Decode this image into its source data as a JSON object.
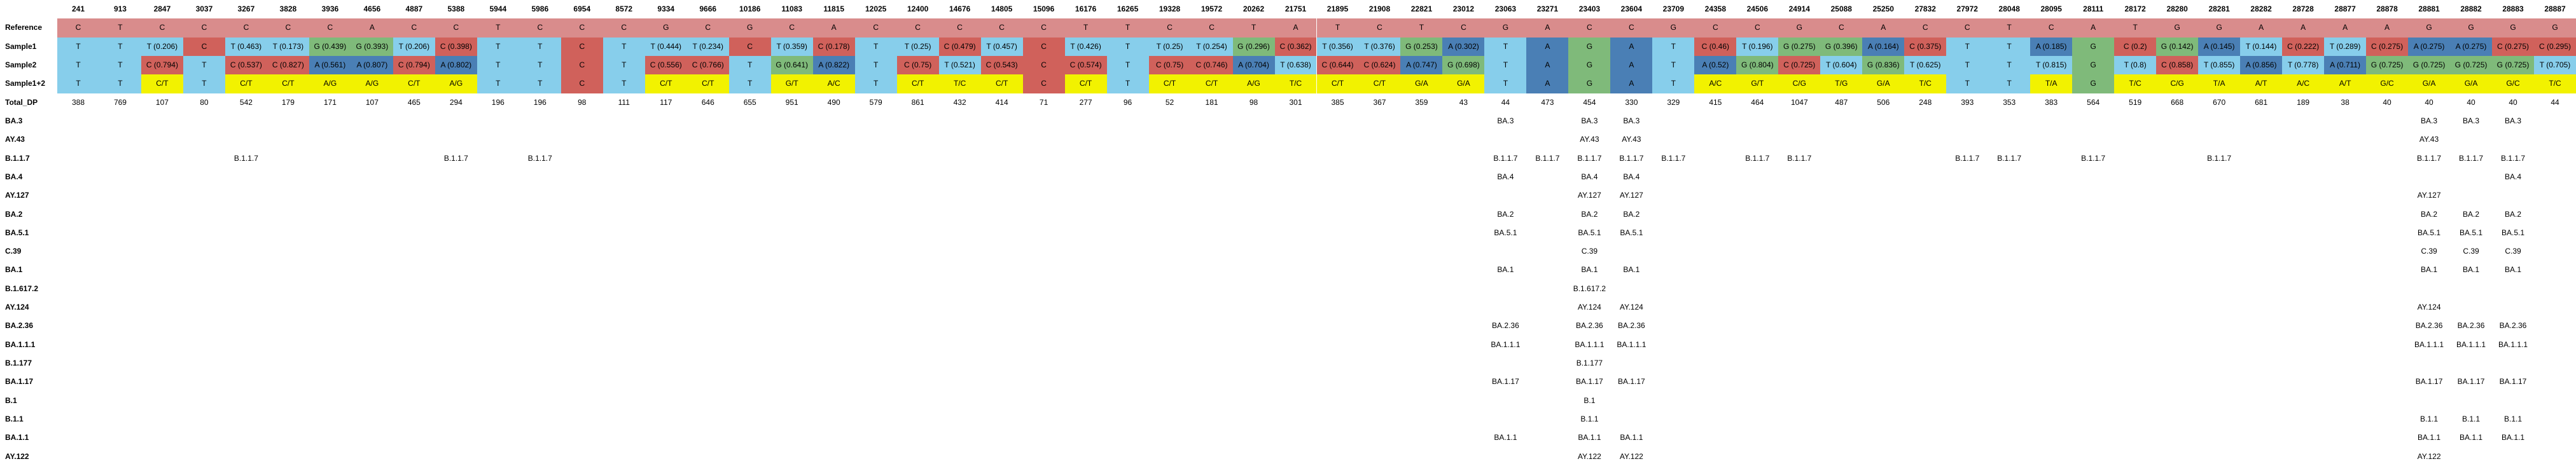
{
  "positions": [
    241,
    913,
    2847,
    3037,
    3267,
    3828,
    3936,
    4656,
    4887,
    5388,
    5944,
    5986,
    6954,
    8572,
    9334,
    9666,
    10186,
    11083,
    11815,
    12025,
    12400,
    14676,
    14805,
    15096,
    16176,
    16265,
    19328,
    19572,
    20262,
    21751,
    21895,
    21908,
    22821,
    23012,
    23063,
    23271,
    23403,
    23604,
    23709,
    24358,
    24506,
    24914,
    25088,
    25250,
    27832,
    27972,
    28048,
    28095,
    28111,
    28172,
    28280,
    28281,
    28282,
    28728,
    28877,
    28878,
    28881,
    28882,
    28883,
    28887
  ],
  "row_labels": [
    "Reference",
    "Sample1",
    "Sample2",
    "Sample1+2",
    "Total_DP",
    "BA.3",
    "AY.43",
    "B.1.1.7",
    "BA.4",
    "AY.127",
    "BA.2",
    "BA.5.1",
    "C.39",
    "BA.1",
    "B.1.617.2",
    "AY.124",
    "BA.2.36",
    "BA.1.1.1",
    "B.1.177",
    "BA.1.17",
    "B.1",
    "B.1.1",
    "BA.1.1",
    "AY.122"
  ],
  "legend_colors": {
    "A": "#4a7fb5",
    "C": "#d0615b",
    "G": "#7fba7a",
    "T": "#87ceeb",
    "ref": "#d98c8c",
    "mixed": "#f2f200"
  },
  "reference": [
    "C",
    "T",
    "C",
    "C",
    "C",
    "C",
    "C",
    "A",
    "C",
    "C",
    "T",
    "C",
    "C",
    "C",
    "G",
    "C",
    "G",
    "C",
    "A",
    "C",
    "C",
    "C",
    "C",
    "C",
    "T",
    "T",
    "C",
    "C",
    "T",
    "A",
    "T",
    "C",
    "T",
    "C",
    "G",
    "A",
    "C",
    "C",
    "G",
    "C",
    "C",
    "G",
    "C",
    "A",
    "C",
    "C",
    "T",
    "C",
    "A",
    "T",
    "G",
    "G",
    "A",
    "A",
    "A",
    "A",
    "G",
    "G",
    "G",
    "G"
  ],
  "sample1": [
    "T",
    "T",
    "T (0.206)",
    "C",
    "T (0.463)",
    "T (0.173)",
    "G (0.439)",
    "G (0.393)",
    "T (0.206)",
    "C (0.398)",
    "T",
    "T",
    "C",
    "T",
    "T (0.444)",
    "T (0.234)",
    "C",
    "T (0.359)",
    "C (0.178)",
    "T",
    "T (0.25)",
    "C (0.479)",
    "T (0.457)",
    "C",
    "T (0.426)",
    "T",
    "T (0.25)",
    "T (0.254)",
    "G (0.296)",
    "C (0.362)",
    "T (0.356)",
    "T (0.376)",
    "G (0.253)",
    "A (0.302)",
    "T",
    "A",
    "G",
    "A",
    "T",
    "C (0.46)",
    "T (0.196)",
    "G (0.275)",
    "G (0.396)",
    "A (0.164)",
    "C (0.375)",
    "T",
    "T",
    "A (0.185)",
    "G",
    "C (0.2)",
    "G (0.142)",
    "A (0.145)",
    "T (0.144)",
    "C (0.222)",
    "T (0.289)",
    "C (0.275)",
    "A (0.275)",
    "A (0.275)",
    "C (0.275)",
    "C (0.295)"
  ],
  "sample2": [
    "T",
    "T",
    "C (0.794)",
    "T",
    "C (0.537)",
    "C (0.827)",
    "A (0.561)",
    "A (0.807)",
    "C (0.794)",
    "A (0.802)",
    "T",
    "T",
    "C",
    "T",
    "C (0.556)",
    "C (0.766)",
    "T",
    "G (0.641)",
    "A (0.822)",
    "T",
    "C (0.75)",
    "T (0.521)",
    "C (0.543)",
    "C",
    "C (0.574)",
    "T",
    "C (0.75)",
    "C (0.746)",
    "A (0.704)",
    "T (0.638)",
    "C (0.644)",
    "C (0.624)",
    "A (0.747)",
    "G (0.698)",
    "T",
    "A",
    "G",
    "A",
    "T",
    "A (0.52)",
    "G (0.804)",
    "C (0.725)",
    "T (0.604)",
    "G (0.836)",
    "T (0.625)",
    "T",
    "T",
    "T (0.815)",
    "G",
    "T (0.8)",
    "C (0.858)",
    "T (0.855)",
    "A (0.856)",
    "T (0.778)",
    "A (0.711)",
    "G (0.725)",
    "G (0.725)",
    "G (0.725)",
    "G (0.725)",
    "T (0.705)"
  ],
  "sample12": [
    "T",
    "T",
    "C/T",
    "T",
    "C/T",
    "C/T",
    "A/G",
    "A/G",
    "C/T",
    "A/G",
    "T",
    "T",
    "C",
    "T",
    "C/T",
    "C/T",
    "T",
    "G/T",
    "A/C",
    "T",
    "C/T",
    "T/C",
    "C/T",
    "C",
    "C/T",
    "T",
    "C/T",
    "C/T",
    "A/G",
    "T/C",
    "C/T",
    "C/T",
    "G/A",
    "G/A",
    "T",
    "A",
    "G",
    "A",
    "T",
    "A/C",
    "G/T",
    "C/G",
    "T/G",
    "G/A",
    "T/C",
    "T",
    "T",
    "T/A",
    "G",
    "T/C",
    "C/G",
    "T/A",
    "A/T",
    "A/C",
    "A/T",
    "G/C",
    "G/A",
    "G/A",
    "G/C",
    "T/C"
  ],
  "total_dp": [
    "388",
    "769",
    "107",
    "80",
    "542",
    "179",
    "171",
    "107",
    "465",
    "294",
    "196",
    "196",
    "98",
    "111",
    "117",
    "646",
    "655",
    "951",
    "490",
    "579",
    "861",
    "432",
    "414",
    "71",
    "277",
    "96",
    "52",
    "181",
    "98",
    "301",
    "385",
    "367",
    "359",
    "43",
    "44",
    "473",
    "454",
    "330",
    "329",
    "415",
    "464",
    "1047",
    "487",
    "506",
    "248",
    "393",
    "353",
    "383",
    "564",
    "519",
    "668",
    "670",
    "681",
    "189",
    "38",
    "40",
    "40",
    "40",
    "40",
    "44"
  ],
  "lineages": {
    "BA.3": {
      "34": "BA.3",
      "36": "BA.3",
      "37": "BA.3",
      "56": "BA.3",
      "57": "BA.3",
      "58": "BA.3"
    },
    "AY.43": {
      "36": "AY.43",
      "37": "AY.43",
      "56": "AY.43"
    },
    "B.1.1.7": {
      "4": "B.1.1.7",
      "9": "B.1.1.7",
      "11": "B.1.1.7",
      "34": "B.1.1.7",
      "35": "B.1.1.7",
      "36": "B.1.1.7",
      "37": "B.1.1.7",
      "38": "B.1.1.7",
      "40": "B.1.1.7",
      "41": "B.1.1.7",
      "45": "B.1.1.7",
      "46": "B.1.1.7",
      "48": "B.1.1.7",
      "51": "B.1.1.7",
      "56": "B.1.1.7",
      "57": "B.1.1.7",
      "58": "B.1.1.7"
    },
    "BA.4": {
      "34": "BA.4",
      "36": "BA.4",
      "37": "BA.4",
      "58": "BA.4"
    },
    "AY.127": {
      "36": "AY.127",
      "37": "AY.127",
      "56": "AY.127"
    },
    "BA.2": {
      "34": "BA.2",
      "36": "BA.2",
      "37": "BA.2",
      "56": "BA.2",
      "57": "BA.2",
      "58": "BA.2"
    },
    "BA.5.1": {
      "34": "BA.5.1",
      "36": "BA.5.1",
      "37": "BA.5.1",
      "56": "BA.5.1",
      "57": "BA.5.1",
      "58": "BA.5.1"
    },
    "C.39": {
      "36": "C.39",
      "56": "C.39",
      "57": "C.39",
      "58": "C.39"
    },
    "BA.1": {
      "34": "BA.1",
      "36": "BA.1",
      "37": "BA.1",
      "56": "BA.1",
      "57": "BA.1",
      "58": "BA.1"
    },
    "B.1.617.2": {
      "36": "B.1.617.2"
    },
    "AY.124": {
      "36": "AY.124",
      "37": "AY.124",
      "56": "AY.124"
    },
    "BA.2.36": {
      "34": "BA.2.36",
      "36": "BA.2.36",
      "37": "BA.2.36",
      "56": "BA.2.36",
      "57": "BA.2.36",
      "58": "BA.2.36"
    },
    "BA.1.1.1": {
      "34": "BA.1.1.1",
      "36": "BA.1.1.1",
      "37": "BA.1.1.1",
      "56": "BA.1.1.1",
      "57": "BA.1.1.1",
      "58": "BA.1.1.1"
    },
    "B.1.177": {
      "36": "B.1.177"
    },
    "BA.1.17": {
      "34": "BA.1.17",
      "36": "BA.1.17",
      "37": "BA.1.17",
      "56": "BA.1.17",
      "57": "BA.1.17",
      "58": "BA.1.17"
    },
    "B.1": {
      "36": "B.1"
    },
    "B.1.1": {
      "36": "B.1.1",
      "56": "B.1.1",
      "57": "B.1.1",
      "58": "B.1.1"
    },
    "BA.1.1": {
      "34": "BA.1.1",
      "36": "BA.1.1",
      "37": "BA.1.1",
      "56": "BA.1.1",
      "57": "BA.1.1",
      "58": "BA.1.1"
    },
    "AY.122": {
      "36": "AY.122",
      "37": "AY.122",
      "56": "AY.122"
    }
  }
}
